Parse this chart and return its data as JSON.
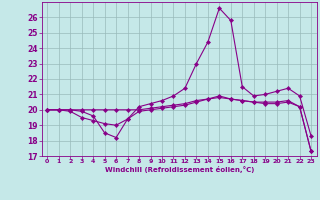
{
  "xlabel": "Windchill (Refroidissement éolien,°C)",
  "bg_color": "#c5e8e8",
  "line_color": "#880088",
  "grid_color": "#99bbbb",
  "xlim": [
    -0.5,
    23.5
  ],
  "ylim": [
    17,
    27
  ],
  "xticks": [
    0,
    1,
    2,
    3,
    4,
    5,
    6,
    7,
    8,
    9,
    10,
    11,
    12,
    13,
    14,
    15,
    16,
    17,
    18,
    19,
    20,
    21,
    22,
    23
  ],
  "yticks": [
    17,
    18,
    19,
    20,
    21,
    22,
    23,
    24,
    25,
    26
  ],
  "line1_x": [
    0,
    1,
    2,
    3,
    4,
    5,
    6,
    7,
    8,
    9,
    10,
    11,
    12,
    13,
    14,
    15,
    16,
    17,
    18,
    19,
    20,
    21,
    22,
    23
  ],
  "line1_y": [
    20.0,
    20.0,
    20.0,
    19.9,
    19.6,
    18.5,
    18.2,
    19.4,
    20.2,
    20.4,
    20.6,
    20.9,
    21.4,
    23.0,
    24.4,
    26.6,
    25.8,
    21.5,
    20.9,
    21.0,
    21.2,
    21.4,
    20.9,
    18.3
  ],
  "line2_x": [
    0,
    1,
    2,
    3,
    4,
    5,
    6,
    7,
    8,
    9,
    10,
    11,
    12,
    13,
    14,
    15,
    16,
    17,
    18,
    19,
    20,
    21,
    22,
    23
  ],
  "line2_y": [
    20.0,
    20.0,
    19.9,
    19.5,
    19.3,
    19.1,
    19.0,
    19.4,
    19.9,
    20.0,
    20.1,
    20.2,
    20.3,
    20.5,
    20.7,
    20.9,
    20.7,
    20.6,
    20.5,
    20.5,
    20.5,
    20.6,
    20.2,
    17.3
  ],
  "line3_x": [
    0,
    1,
    2,
    3,
    4,
    5,
    6,
    7,
    8,
    9,
    10,
    11,
    12,
    13,
    14,
    15,
    16,
    17,
    18,
    19,
    20,
    21,
    22,
    23
  ],
  "line3_y": [
    20.0,
    20.0,
    20.0,
    20.0,
    20.0,
    20.0,
    20.0,
    20.0,
    20.0,
    20.1,
    20.2,
    20.3,
    20.4,
    20.6,
    20.7,
    20.8,
    20.7,
    20.6,
    20.5,
    20.4,
    20.4,
    20.5,
    20.2,
    17.3
  ]
}
